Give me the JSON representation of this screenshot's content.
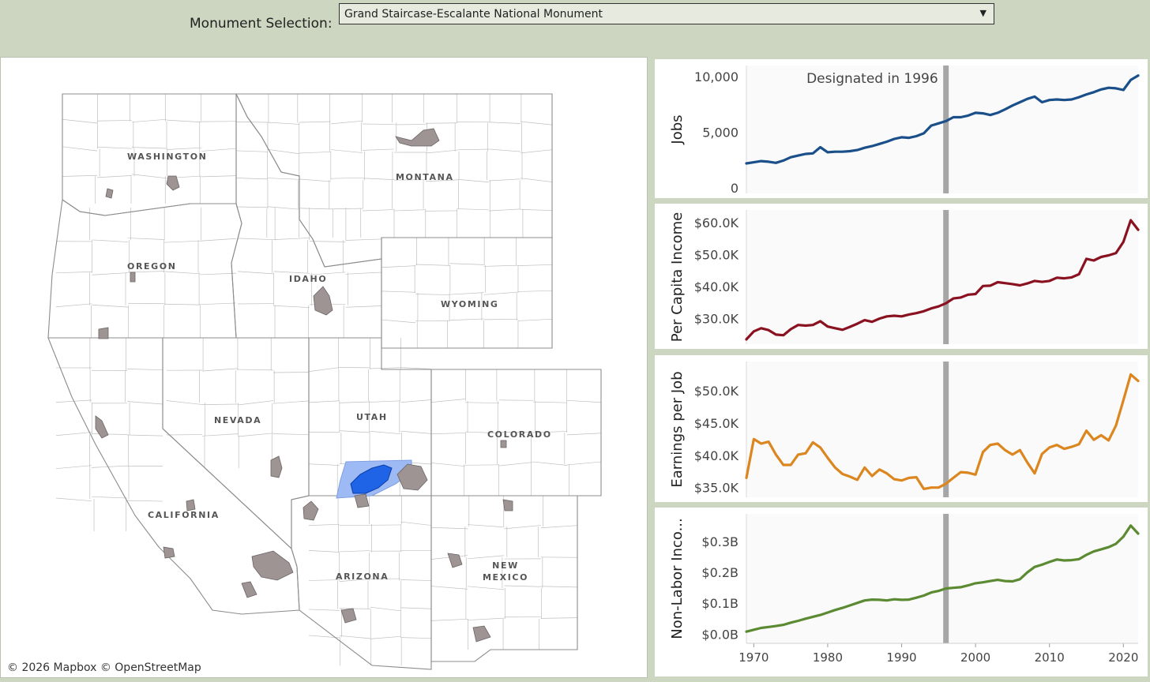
{
  "selector": {
    "label": "Monument Selection:",
    "value": "Grand Staircase-Escalante National Monument"
  },
  "map": {
    "attribution": "© 2026 Mapbox  © OpenStreetMap",
    "state_labels": [
      "WASHINGTON",
      "MONTANA",
      "OREGON",
      "IDAHO",
      "WYOMING",
      "NEVADA",
      "UTAH",
      "COLORADO",
      "CALIFORNIA",
      "ARIZONA",
      "NEW MEXICO"
    ],
    "colors": {
      "monument": "#9e9494",
      "selected": "#1f63e6",
      "selected_county": "#9dbaf5",
      "county_line": "#bfbfbf"
    }
  },
  "chart_data": [
    {
      "type": "line",
      "ylabel": "Jobs",
      "annotation": "Designated in 1996",
      "designation_year": 1996,
      "color": "#1a4f8a",
      "xlim": [
        1969,
        2022
      ],
      "ylim": [
        -500,
        11000
      ],
      "yticks": [
        0,
        5000,
        10000
      ],
      "ytick_labels": [
        "0",
        "5,000",
        "10,000"
      ],
      "x": [
        1969,
        1970,
        1971,
        1972,
        1973,
        1974,
        1975,
        1976,
        1977,
        1978,
        1979,
        1980,
        1981,
        1982,
        1983,
        1984,
        1985,
        1986,
        1987,
        1988,
        1989,
        1990,
        1991,
        1992,
        1993,
        1994,
        1995,
        1996,
        1997,
        1998,
        1999,
        2000,
        2001,
        2002,
        2003,
        2004,
        2005,
        2006,
        2007,
        2008,
        2009,
        2010,
        2011,
        2012,
        2013,
        2014,
        2015,
        2016,
        2017,
        2018,
        2019,
        2020,
        2021,
        2022
      ],
      "values": [
        2200,
        2300,
        2400,
        2350,
        2250,
        2450,
        2750,
        2900,
        3050,
        3100,
        3650,
        3200,
        3250,
        3250,
        3300,
        3400,
        3600,
        3750,
        3950,
        4150,
        4400,
        4550,
        4500,
        4650,
        4900,
        5600,
        5800,
        6000,
        6350,
        6350,
        6500,
        6750,
        6700,
        6550,
        6750,
        7050,
        7400,
        7700,
        8000,
        8200,
        7700,
        7900,
        7950,
        7900,
        7950,
        8150,
        8400,
        8600,
        8850,
        9000,
        8950,
        8800,
        9700,
        10100
      ]
    },
    {
      "type": "line",
      "ylabel": "Per Capita Income",
      "designation_year": 1996,
      "color": "#8a1220",
      "xlim": [
        1969,
        2022
      ],
      "ylim": [
        22000,
        64000
      ],
      "yticks": [
        30000,
        40000,
        50000,
        60000
      ],
      "ytick_labels": [
        "$30.0K",
        "$40.0K",
        "$50.0K",
        "$60.0K"
      ],
      "x": [
        1969,
        1970,
        1971,
        1972,
        1973,
        1974,
        1975,
        1976,
        1977,
        1978,
        1979,
        1980,
        1981,
        1982,
        1983,
        1984,
        1985,
        1986,
        1987,
        1988,
        1989,
        1990,
        1991,
        1992,
        1993,
        1994,
        1995,
        1996,
        1997,
        1998,
        1999,
        2000,
        2001,
        2002,
        2003,
        2004,
        2005,
        2006,
        2007,
        2008,
        2009,
        2010,
        2011,
        2012,
        2013,
        2014,
        2015,
        2016,
        2017,
        2018,
        2019,
        2020,
        2021,
        2022
      ],
      "values": [
        23500,
        26000,
        27000,
        26400,
        25000,
        24800,
        26700,
        28000,
        27800,
        28000,
        29200,
        27500,
        27000,
        26500,
        27400,
        28400,
        29500,
        29000,
        30000,
        30700,
        30900,
        30700,
        31300,
        31700,
        32300,
        33200,
        33800,
        34800,
        36300,
        36600,
        37500,
        37700,
        40200,
        40300,
        41400,
        41100,
        40800,
        40400,
        41000,
        41800,
        41500,
        41800,
        42800,
        42600,
        42900,
        43900,
        48700,
        48200,
        49300,
        49800,
        50500,
        54000,
        60800,
        57800
      ]
    },
    {
      "type": "line",
      "ylabel": "Earnings per Job",
      "designation_year": 1996,
      "color": "#db861e",
      "xlim": [
        1969,
        2022
      ],
      "ylim": [
        33500,
        54500
      ],
      "yticks": [
        35000,
        40000,
        45000,
        50000
      ],
      "ytick_labels": [
        "$35.0K",
        "$40.0K",
        "$45.0K",
        "$50.0K"
      ],
      "x": [
        1969,
        1970,
        1971,
        1972,
        1973,
        1974,
        1975,
        1976,
        1977,
        1978,
        1979,
        1980,
        1981,
        1982,
        1983,
        1984,
        1985,
        1986,
        1987,
        1988,
        1989,
        1990,
        1991,
        1992,
        1993,
        1994,
        1995,
        1996,
        1997,
        1998,
        1999,
        2000,
        2001,
        2002,
        2003,
        2004,
        2005,
        2006,
        2007,
        2008,
        2009,
        2010,
        2011,
        2012,
        2013,
        2014,
        2015,
        2016,
        2017,
        2018,
        2019,
        2020,
        2021,
        2022
      ],
      "values": [
        36500,
        42500,
        41800,
        42100,
        40100,
        38500,
        38500,
        40100,
        40300,
        42000,
        41200,
        39600,
        38100,
        37100,
        36700,
        36200,
        38100,
        36800,
        37800,
        37200,
        36300,
        36100,
        36500,
        36600,
        34800,
        35000,
        35000,
        35600,
        36500,
        37400,
        37300,
        37000,
        40500,
        41600,
        41800,
        40800,
        40100,
        40800,
        38900,
        37200,
        40200,
        41200,
        41600,
        41000,
        41300,
        41700,
        43800,
        42400,
        43100,
        42300,
        44600,
        48500,
        52500,
        51500
      ]
    },
    {
      "type": "line",
      "ylabel": "Non-Labor Inco...",
      "designation_year": 1996,
      "color": "#5b8a32",
      "xlim": [
        1969,
        2022
      ],
      "ylim": [
        -0.03,
        0.39
      ],
      "yticks": [
        0.0,
        0.1,
        0.2,
        0.3
      ],
      "ytick_labels": [
        "$0.0B",
        "$0.1B",
        "$0.2B",
        "$0.3B"
      ],
      "xticks": [
        1970,
        1980,
        1990,
        2000,
        2010,
        2020
      ],
      "xtick_labels": [
        "1970",
        "1980",
        "1990",
        "2000",
        "2010",
        "2020"
      ],
      "x": [
        1969,
        1970,
        1971,
        1972,
        1973,
        1974,
        1975,
        1976,
        1977,
        1978,
        1979,
        1980,
        1981,
        1982,
        1983,
        1984,
        1985,
        1986,
        1987,
        1988,
        1989,
        1990,
        1991,
        1992,
        1993,
        1994,
        1995,
        1996,
        1997,
        1998,
        1999,
        2000,
        2001,
        2002,
        2003,
        2004,
        2005,
        2006,
        2007,
        2008,
        2009,
        2010,
        2011,
        2012,
        2013,
        2014,
        2015,
        2016,
        2017,
        2018,
        2019,
        2020,
        2021,
        2022
      ],
      "values": [
        0.008,
        0.014,
        0.02,
        0.023,
        0.026,
        0.03,
        0.037,
        0.043,
        0.05,
        0.056,
        0.062,
        0.07,
        0.078,
        0.085,
        0.093,
        0.101,
        0.109,
        0.112,
        0.111,
        0.109,
        0.113,
        0.111,
        0.112,
        0.118,
        0.125,
        0.135,
        0.14,
        0.148,
        0.15,
        0.152,
        0.158,
        0.165,
        0.168,
        0.172,
        0.176,
        0.172,
        0.171,
        0.178,
        0.2,
        0.218,
        0.225,
        0.234,
        0.242,
        0.239,
        0.24,
        0.243,
        0.257,
        0.268,
        0.275,
        0.282,
        0.293,
        0.316,
        0.352,
        0.326
      ]
    }
  ]
}
